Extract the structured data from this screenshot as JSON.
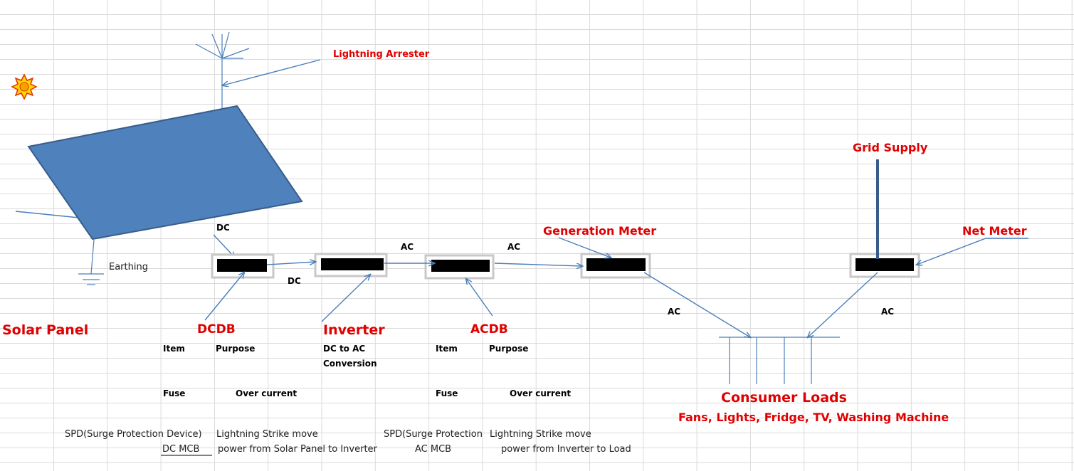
{
  "labels": {
    "lightning_arrester": "Lightning Arrester",
    "dc_top": "DC",
    "earthing": "Earthing",
    "solar_panel": "Solar Panel",
    "dcdb": "DCDB",
    "dc_mid": "DC",
    "inverter": "Inverter",
    "ac_1": "AC",
    "acdb": "ACDB",
    "ac_2": "AC",
    "generation_meter": "Generation Meter",
    "ac_3": "AC",
    "grid_supply": "Grid Supply",
    "net_meter": "Net Meter",
    "ac_4": "AC",
    "consumer_loads": "Consumer Loads",
    "appliances": "Fans, Lights, Fridge, TV, Washing Machine"
  },
  "dcdb_table": {
    "header": [
      "Item",
      "Purpose"
    ],
    "rows": [
      [
        "Fuse",
        "Over current"
      ],
      [
        "SPD(Surge Protection Device)",
        "Lightning Strike move"
      ],
      [
        "DC MCB",
        "power from Solar Panel to Inverter"
      ]
    ]
  },
  "inverter_note": [
    "DC to AC",
    "Conversion"
  ],
  "acdb_table": {
    "header": [
      "Item",
      "Purpose"
    ],
    "rows": [
      [
        "Fuse",
        "Over current"
      ],
      [
        "SPD(Surge Protection",
        "Lightning Strike move"
      ],
      [
        "AC MCB",
        "power from Inverter to Load"
      ]
    ]
  }
}
